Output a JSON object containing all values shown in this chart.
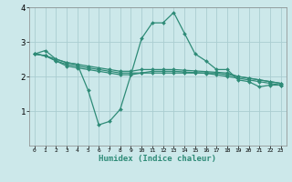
{
  "x": [
    0,
    1,
    2,
    3,
    4,
    5,
    6,
    7,
    8,
    9,
    10,
    11,
    12,
    13,
    14,
    15,
    16,
    17,
    18,
    19,
    20,
    21,
    22,
    23
  ],
  "line1": [
    2.65,
    2.75,
    2.5,
    2.4,
    2.35,
    1.6,
    0.6,
    0.7,
    1.05,
    2.05,
    3.1,
    3.55,
    3.55,
    3.85,
    3.25,
    2.65,
    2.45,
    2.2,
    2.2,
    1.9,
    1.85,
    1.7,
    1.75,
    1.75
  ],
  "line2": [
    2.65,
    2.6,
    2.45,
    2.35,
    2.3,
    2.25,
    2.2,
    2.15,
    2.1,
    2.1,
    2.1,
    2.1,
    2.1,
    2.1,
    2.1,
    2.1,
    2.1,
    2.1,
    2.05,
    2.0,
    1.95,
    1.9,
    1.85,
    1.8
  ],
  "line3": [
    2.65,
    2.6,
    2.5,
    2.4,
    2.35,
    2.3,
    2.25,
    2.2,
    2.15,
    2.15,
    2.2,
    2.2,
    2.2,
    2.2,
    2.18,
    2.16,
    2.14,
    2.12,
    2.1,
    2.0,
    1.95,
    1.9,
    1.85,
    1.8
  ],
  "line4": [
    2.65,
    2.6,
    2.45,
    2.3,
    2.25,
    2.2,
    2.15,
    2.1,
    2.05,
    2.05,
    2.1,
    2.15,
    2.15,
    2.15,
    2.13,
    2.11,
    2.09,
    2.05,
    2.0,
    1.95,
    1.9,
    1.85,
    1.8,
    1.75
  ],
  "line_color": "#2e8b77",
  "bg_color": "#cce8ea",
  "grid_color": "#aacdd0",
  "xlabel": "Humidex (Indice chaleur)",
  "ylim": [
    0,
    4
  ],
  "xlim": [
    -0.5,
    23.5
  ],
  "yticks": [
    1,
    2,
    3,
    4
  ],
  "xticks": [
    0,
    1,
    2,
    3,
    4,
    5,
    6,
    7,
    8,
    9,
    10,
    11,
    12,
    13,
    14,
    15,
    16,
    17,
    18,
    19,
    20,
    21,
    22,
    23
  ],
  "marker": "D",
  "markersize": 2.0,
  "linewidth": 0.9
}
